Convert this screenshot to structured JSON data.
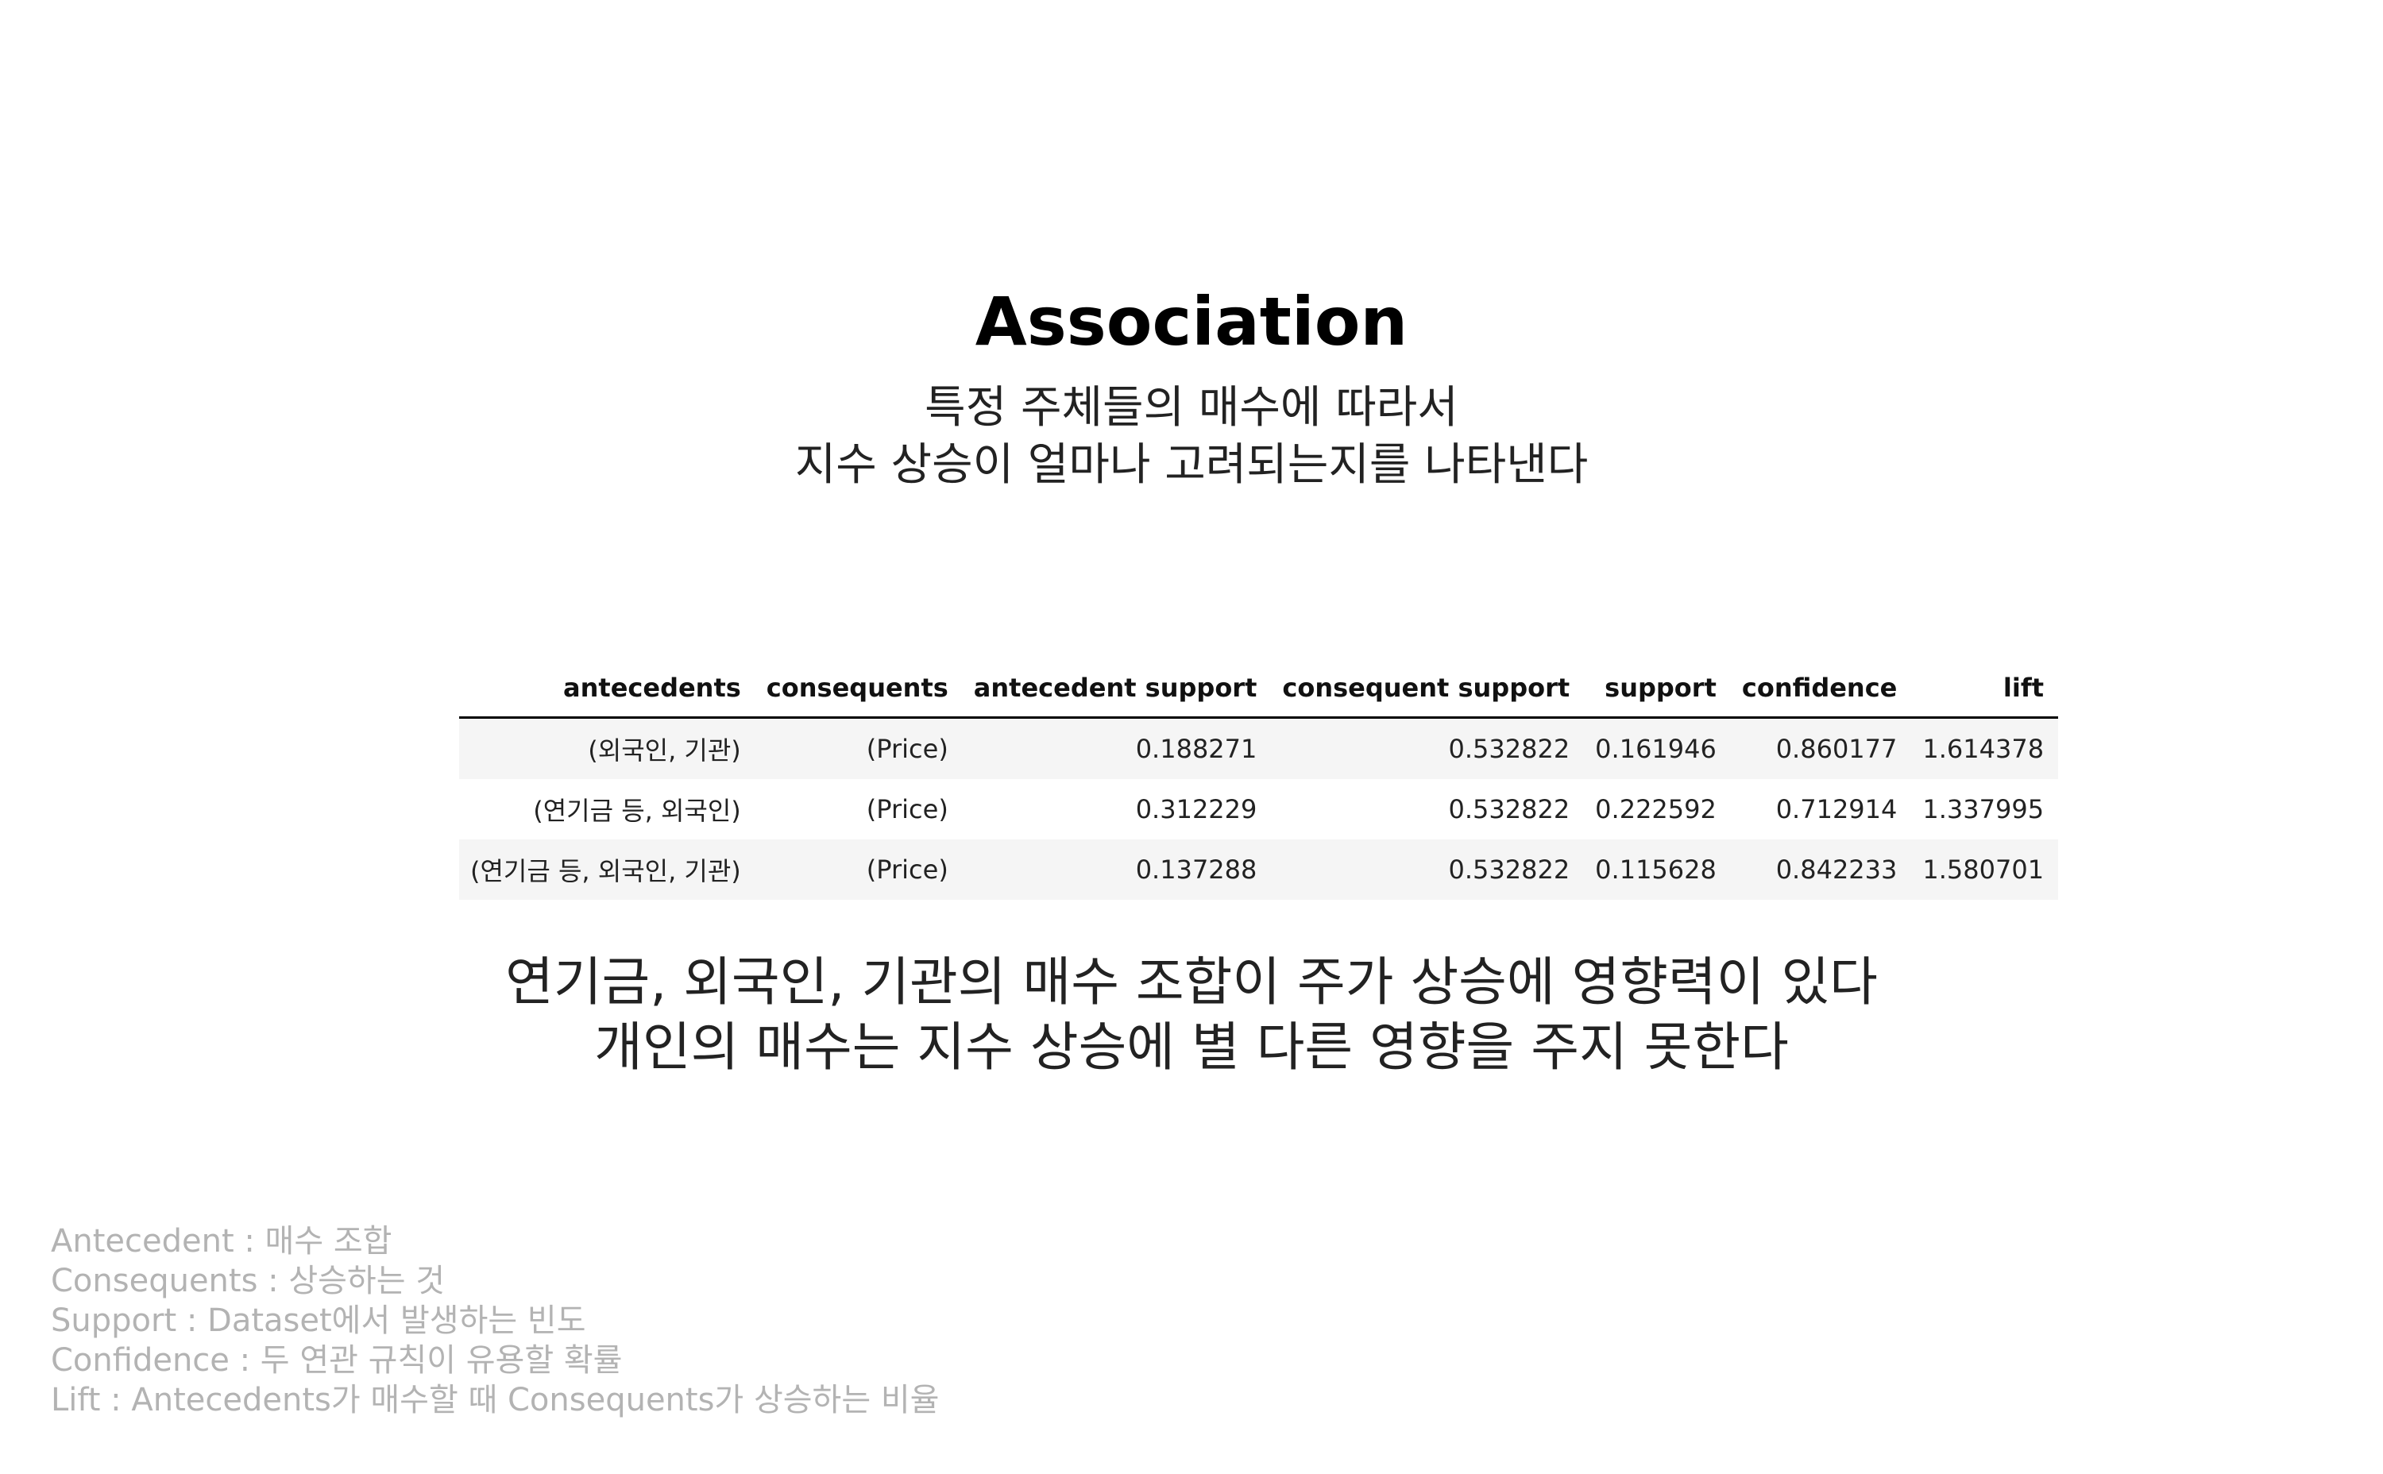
{
  "title": "Association",
  "subtitle": {
    "lines": [
      "특정 주체들의 매수에 따라서",
      "지수 상승이 얼마나 고려되는지를 나타낸다"
    ]
  },
  "table": {
    "columns": [
      "antecedents",
      "consequents",
      "antecedent support",
      "consequent support",
      "support",
      "confidence",
      "lift"
    ],
    "rows": [
      [
        "(외국인, 기관)",
        "(Price)",
        "0.188271",
        "0.532822",
        "0.161946",
        "0.860177",
        "1.614378"
      ],
      [
        "(연기금 등, 외국인)",
        "(Price)",
        "0.312229",
        "0.532822",
        "0.222592",
        "0.712914",
        "1.337995"
      ],
      [
        "(연기금 등, 외국인, 기관)",
        "(Price)",
        "0.137288",
        "0.532822",
        "0.115628",
        "0.842233",
        "1.580701"
      ]
    ]
  },
  "conclusion": {
    "lines": [
      "연기금, 외국인, 기관의 매수 조합이 주가 상승에 영향력이 있다",
      "개인의 매수는 지수 상승에 별 다른 영향을 주지 못한다"
    ]
  },
  "glossary": {
    "items": [
      "Antecedent : 매수 조합",
      "Consequents : 상승하는 것",
      "Support : Dataset에서 발생하는 빈도",
      "Confidence : 두 연관 규칙이 유용할 확률",
      "Lift : Antecedents가 매수할 때 Consequents가 상승하는 비율"
    ]
  }
}
